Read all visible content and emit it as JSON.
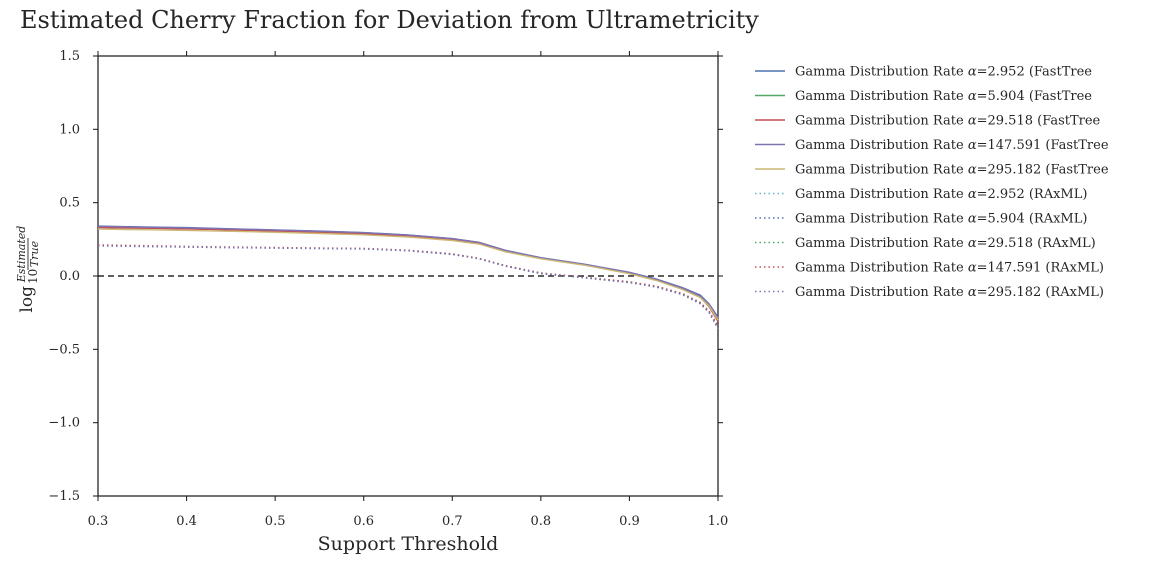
{
  "chart_data": {
    "type": "line",
    "title": "Estimated Cherry Fraction  for Deviation from Ultrametricity",
    "xlabel": "Support Threshold",
    "ylabel": {
      "prefix": "log",
      "subscript": "10",
      "numerator": "Estimated",
      "denominator": "True"
    },
    "xlim": [
      0.3,
      1.0
    ],
    "ylim": [
      -1.5,
      1.5
    ],
    "xticks": [
      "0.3",
      "0.4",
      "0.5",
      "0.6",
      "0.7",
      "0.8",
      "0.9",
      "1.0"
    ],
    "yticks": [
      "1.5",
      "1.0",
      "0.5",
      "0.0",
      "−0.5",
      "−1.0",
      "−1.5"
    ],
    "xtick_values": [
      0.3,
      0.4,
      0.5,
      0.6,
      0.7,
      0.8,
      0.9,
      1.0
    ],
    "ytick_values": [
      1.5,
      1.0,
      0.5,
      0.0,
      -0.5,
      -1.0,
      -1.5
    ],
    "grid": false,
    "reference_line": {
      "y": 0.0,
      "style": "dashed",
      "color": "#000000"
    },
    "legend_position": "outside-right",
    "x": [
      0.3,
      0.35,
      0.4,
      0.45,
      0.5,
      0.55,
      0.6,
      0.65,
      0.7,
      0.73,
      0.76,
      0.8,
      0.85,
      0.9,
      0.93,
      0.96,
      0.98,
      0.99,
      1.0
    ],
    "series": [
      {
        "name": "Gamma Distribution Rate",
        "alpha": "α",
        "value": "=2.952",
        "method": "(FastTree",
        "style": "solid",
        "color": "#4c72b0",
        "values": [
          0.34,
          0.335,
          0.33,
          0.322,
          0.314,
          0.306,
          0.296,
          0.28,
          0.255,
          0.23,
          0.175,
          0.125,
          0.08,
          0.025,
          -0.02,
          -0.08,
          -0.13,
          -0.19,
          -0.28
        ]
      },
      {
        "name": "Gamma Distribution Rate",
        "alpha": "α",
        "value": "=5.904",
        "method": "(FastTree",
        "style": "solid",
        "color": "#55a868",
        "values": [
          0.335,
          0.33,
          0.325,
          0.318,
          0.31,
          0.302,
          0.292,
          0.276,
          0.25,
          0.226,
          0.171,
          0.122,
          0.078,
          0.022,
          -0.024,
          -0.085,
          -0.14,
          -0.2,
          -0.3
        ]
      },
      {
        "name": "Gamma Distribution Rate",
        "alpha": "α",
        "value": "=29.518",
        "method": "(FastTree",
        "style": "solid",
        "color": "#c44e52",
        "values": [
          0.33,
          0.326,
          0.321,
          0.314,
          0.306,
          0.298,
          0.288,
          0.272,
          0.247,
          0.222,
          0.168,
          0.12,
          0.075,
          0.018,
          -0.028,
          -0.09,
          -0.145,
          -0.21,
          -0.31
        ]
      },
      {
        "name": "Gamma Distribution Rate",
        "alpha": "α",
        "value": "=147.591",
        "method": "(FastTree",
        "style": "solid",
        "color": "#8172b2",
        "values": [
          0.338,
          0.333,
          0.328,
          0.321,
          0.313,
          0.305,
          0.295,
          0.279,
          0.254,
          0.229,
          0.174,
          0.124,
          0.079,
          0.023,
          -0.022,
          -0.083,
          -0.136,
          -0.195,
          -0.29
        ]
      },
      {
        "name": "Gamma Distribution Rate",
        "alpha": "α",
        "value": "=295.182",
        "method": "(FastTree",
        "style": "solid",
        "color": "#ccb974",
        "values": [
          0.32,
          0.316,
          0.311,
          0.305,
          0.298,
          0.29,
          0.281,
          0.266,
          0.242,
          0.218,
          0.165,
          0.117,
          0.073,
          0.016,
          -0.03,
          -0.092,
          -0.147,
          -0.205,
          -0.3
        ]
      },
      {
        "name": "Gamma Distribution Rate",
        "alpha": "α",
        "value": "=2.952",
        "method": "(RAxML)",
        "style": "dotted",
        "color": "#64b5cd",
        "values": [
          0.21,
          0.205,
          0.2,
          0.196,
          0.193,
          0.19,
          0.187,
          0.175,
          0.15,
          0.12,
          0.07,
          0.02,
          -0.01,
          -0.04,
          -0.07,
          -0.12,
          -0.18,
          -0.24,
          -0.34
        ]
      },
      {
        "name": "Gamma Distribution Rate",
        "alpha": "α",
        "value": "=5.904",
        "method": "(RAxML)",
        "style": "dotted",
        "color": "#4c72b0",
        "values": [
          0.205,
          0.201,
          0.197,
          0.193,
          0.19,
          0.187,
          0.184,
          0.172,
          0.147,
          0.117,
          0.067,
          0.016,
          -0.013,
          -0.045,
          -0.075,
          -0.128,
          -0.19,
          -0.25,
          -0.36
        ]
      },
      {
        "name": "Gamma Distribution Rate",
        "alpha": "α",
        "value": "=29.518",
        "method": "(RAxML)",
        "style": "dotted",
        "color": "#55a868",
        "values": [
          0.208,
          0.203,
          0.199,
          0.195,
          0.192,
          0.189,
          0.186,
          0.174,
          0.149,
          0.119,
          0.069,
          0.018,
          -0.011,
          -0.042,
          -0.072,
          -0.124,
          -0.185,
          -0.245,
          -0.35
        ]
      },
      {
        "name": "Gamma Distribution Rate",
        "alpha": "α",
        "value": "=147.591",
        "method": "(RAxML)",
        "style": "dotted",
        "color": "#c44e52",
        "values": [
          0.212,
          0.207,
          0.202,
          0.198,
          0.194,
          0.191,
          0.188,
          0.176,
          0.151,
          0.121,
          0.071,
          0.021,
          -0.009,
          -0.039,
          -0.069,
          -0.12,
          -0.18,
          -0.24,
          -0.34
        ]
      },
      {
        "name": "Gamma Distribution Rate",
        "alpha": "α",
        "value": "=295.182",
        "method": "(RAxML)",
        "style": "dotted",
        "color": "#8172b2",
        "values": [
          0.206,
          0.202,
          0.198,
          0.194,
          0.191,
          0.188,
          0.185,
          0.173,
          0.148,
          0.118,
          0.068,
          0.017,
          -0.012,
          -0.044,
          -0.074,
          -0.126,
          -0.188,
          -0.248,
          -0.355
        ]
      }
    ]
  }
}
